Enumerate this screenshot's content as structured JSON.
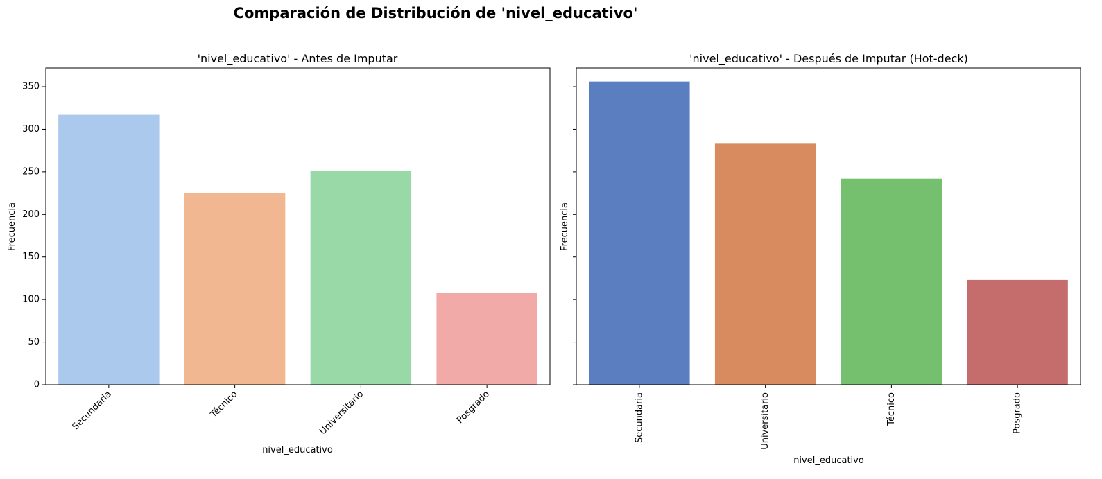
{
  "figure": {
    "suptitle": "Comparación de Distribución de 'nivel_educativo'"
  },
  "chart_data": [
    {
      "type": "bar",
      "title": "'nivel_educativo' - Antes de Imputar",
      "xlabel": "nivel_educativo",
      "ylabel": "Frecuencia",
      "categories": [
        "Secundaria",
        "Técnico",
        "Universitario",
        "Posgrado"
      ],
      "values": [
        317,
        225,
        251,
        108
      ],
      "colors": [
        "#abc9ed",
        "#f1b791",
        "#99d9a7",
        "#f2aaa9"
      ],
      "ylim": [
        0,
        372
      ],
      "yticks": [
        0,
        50,
        100,
        150,
        200,
        250,
        300,
        350
      ],
      "xtick_rotation": 45,
      "grid": false
    },
    {
      "type": "bar",
      "title": "'nivel_educativo' - Después de Imputar (Hot-deck)",
      "xlabel": "nivel_educativo",
      "ylabel": "Frecuencia",
      "categories": [
        "Secundaria",
        "Universitario",
        "Técnico",
        "Posgrado"
      ],
      "values": [
        356,
        283,
        242,
        123
      ],
      "colors": [
        "#5a7ec0",
        "#d98b60",
        "#74c06f",
        "#c56d6d"
      ],
      "ylim": [
        0,
        372
      ],
      "yticks": [
        0,
        50,
        100,
        150,
        200,
        250,
        300,
        350
      ],
      "shared_y": true,
      "xtick_rotation": 90,
      "grid": false
    }
  ]
}
